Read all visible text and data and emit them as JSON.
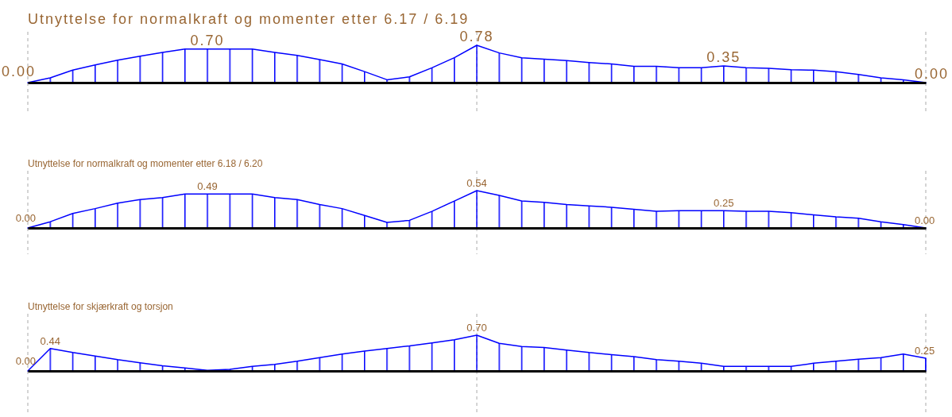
{
  "chart_data": [
    {
      "type": "area",
      "title": "Utnyttelse for normalkraft og momenter etter 6.17 / 6.19",
      "marker": "none",
      "line_style": "solid",
      "categories": [
        null,
        null,
        null,
        null,
        null,
        null,
        null,
        null,
        null,
        null,
        null,
        null,
        null,
        null,
        null,
        null,
        null,
        null,
        null,
        null,
        null,
        null,
        null,
        null,
        null,
        null,
        null,
        null,
        null,
        null,
        null,
        null,
        null,
        null,
        null,
        null,
        null,
        null,
        null,
        null,
        null
      ],
      "series": [
        {
          "color": "#0000ff",
          "values": [
            0,
            0.1,
            0.26,
            0.37,
            0.47,
            0.55,
            0.63,
            0.7,
            0.7,
            0.7,
            0.7,
            0.63,
            0.57,
            0.48,
            0.39,
            0.23,
            0.06,
            0.12,
            0.31,
            0.52,
            0.78,
            0.62,
            0.52,
            0.49,
            0.46,
            0.42,
            0.39,
            0.34,
            0.34,
            0.31,
            0.31,
            0.35,
            0.31,
            0.3,
            0.27,
            0.26,
            0.23,
            0.17,
            0.1,
            0.06,
            0
          ],
          "value_labels": [
            "0.00",
            null,
            null,
            null,
            null,
            null,
            null,
            null,
            "0.70",
            null,
            null,
            null,
            null,
            null,
            null,
            null,
            null,
            null,
            null,
            null,
            "0.78",
            null,
            null,
            null,
            null,
            null,
            null,
            null,
            null,
            null,
            null,
            "0.35",
            null,
            null,
            null,
            null,
            null,
            null,
            null,
            null,
            "0.00"
          ]
        }
      ]
    },
    {
      "type": "area",
      "title": "Utnyttelse for normalkraft og momenter etter 6.18 / 6.20",
      "marker": "none",
      "line_style": "solid",
      "categories": [
        null,
        null,
        null,
        null,
        null,
        null,
        null,
        null,
        null,
        null,
        null,
        null,
        null,
        null,
        null,
        null,
        null,
        null,
        null,
        null,
        null,
        null,
        null,
        null,
        null,
        null,
        null,
        null,
        null,
        null,
        null,
        null,
        null,
        null,
        null,
        null,
        null,
        null,
        null,
        null,
        null
      ],
      "series": [
        {
          "color": "#0000ff",
          "values": [
            0,
            0.09,
            0.21,
            0.28,
            0.36,
            0.41,
            0.44,
            0.49,
            0.49,
            0.49,
            0.49,
            0.44,
            0.41,
            0.34,
            0.28,
            0.18,
            0.08,
            0.11,
            0.24,
            0.39,
            0.54,
            0.47,
            0.39,
            0.37,
            0.34,
            0.32,
            0.3,
            0.27,
            0.24,
            0.25,
            0.25,
            0.25,
            0.24,
            0.24,
            0.22,
            0.19,
            0.16,
            0.14,
            0.09,
            0.05,
            0
          ],
          "value_labels": [
            "0.00",
            null,
            null,
            null,
            null,
            null,
            null,
            null,
            "0.49",
            null,
            null,
            null,
            null,
            null,
            null,
            null,
            null,
            null,
            null,
            null,
            "0.54",
            null,
            null,
            null,
            null,
            null,
            null,
            null,
            null,
            null,
            null,
            "0.25",
            null,
            null,
            null,
            null,
            null,
            null,
            null,
            null,
            "0.00"
          ]
        }
      ]
    },
    {
      "type": "area",
      "title": "Utnyttelse for skjærkraft og torsjon",
      "marker": "none",
      "line_style": "solid",
      "categories": [
        null,
        null,
        null,
        null,
        null,
        null,
        null,
        null,
        null,
        null,
        null,
        null,
        null,
        null,
        null,
        null,
        null,
        null,
        null,
        null,
        null,
        null,
        null,
        null,
        null,
        null,
        null,
        null,
        null,
        null,
        null,
        null,
        null,
        null,
        null,
        null,
        null,
        null,
        null,
        null,
        null
      ],
      "series": [
        {
          "color": "#0000ff",
          "values": [
            0,
            0.44,
            0.36,
            0.29,
            0.22,
            0.16,
            0.1,
            0.06,
            0.01,
            0.03,
            0.09,
            0.13,
            0.19,
            0.26,
            0.33,
            0.39,
            0.44,
            0.49,
            0.55,
            0.61,
            0.7,
            0.54,
            0.48,
            0.46,
            0.41,
            0.36,
            0.32,
            0.28,
            0.22,
            0.19,
            0.15,
            0.09,
            0.09,
            0.09,
            0.09,
            0.15,
            0.19,
            0.23,
            0.26,
            0.33,
            0.25
          ],
          "value_labels": [
            "0.00",
            "0.44",
            null,
            null,
            null,
            null,
            null,
            null,
            null,
            null,
            null,
            null,
            null,
            null,
            null,
            null,
            null,
            null,
            null,
            null,
            "0.70",
            null,
            null,
            null,
            null,
            null,
            null,
            null,
            null,
            null,
            null,
            null,
            null,
            null,
            null,
            null,
            null,
            null,
            null,
            null,
            "0.25"
          ]
        }
      ]
    }
  ]
}
